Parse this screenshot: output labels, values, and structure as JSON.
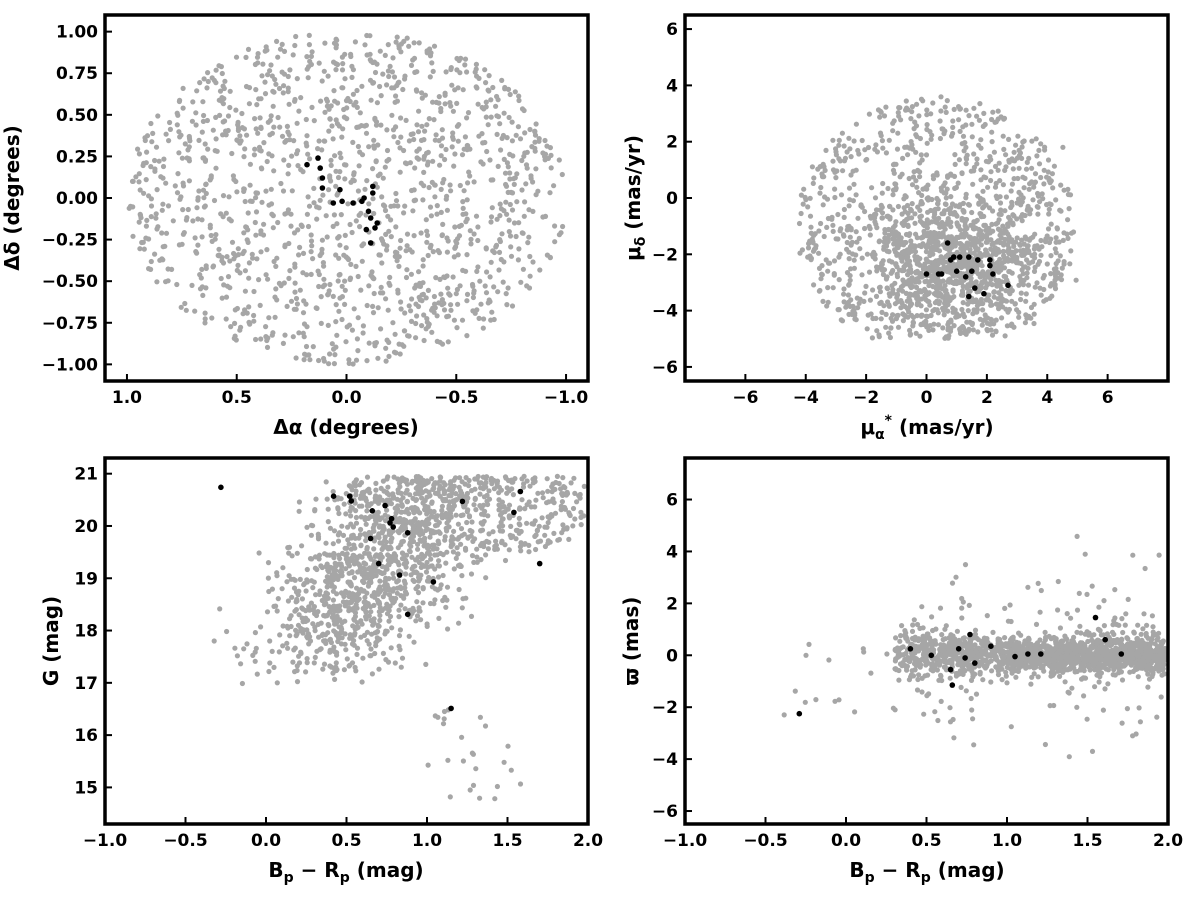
{
  "colors": {
    "field_stars": "#a6a6a6",
    "members": "#000000"
  },
  "chart_data": [
    {
      "id": "positions",
      "type": "scatter",
      "xlabel": "Δα (degrees)",
      "ylabel": "Δδ (degrees)",
      "xlim": [
        1.1,
        -1.1
      ],
      "ylim": [
        -1.1,
        1.1
      ],
      "x_inverted": true,
      "xticks": [
        1.0,
        0.5,
        0.0,
        -0.5,
        -1.0
      ],
      "xtick_labels": [
        "1.0",
        "0.5",
        "0.0",
        "−0.5",
        "−1.0"
      ],
      "yticks": [
        1.0,
        0.75,
        0.5,
        0.25,
        0.0,
        -0.25,
        -0.5,
        -0.75,
        -1.0
      ],
      "ytick_labels": [
        "1.00",
        "0.75",
        "0.50",
        "0.25",
        "0.00",
        "−0.25",
        "−0.50",
        "−0.75",
        "−1.00"
      ],
      "series": [
        {
          "role": "field",
          "color": "#a6a6a6",
          "distribution": "uniform disk",
          "center": [
            0,
            0
          ],
          "radius": 1.0,
          "approx_points": 1400
        },
        {
          "role": "members",
          "color": "#000000",
          "x": [
            0.18,
            0.13,
            0.12,
            0.11,
            0.11,
            0.06,
            0.03,
            0.02,
            -0.03,
            -0.07,
            -0.08,
            -0.09,
            -0.1,
            -0.11,
            -0.11,
            -0.12,
            -0.12,
            -0.14,
            -0.13
          ],
          "y": [
            0.2,
            0.24,
            0.18,
            0.12,
            0.06,
            -0.03,
            0.05,
            -0.02,
            -0.03,
            -0.02,
            0.0,
            -0.19,
            -0.08,
            -0.12,
            -0.27,
            0.03,
            0.07,
            -0.15,
            -0.18
          ]
        }
      ]
    },
    {
      "id": "proper-motion",
      "type": "scatter",
      "xlabel": "μα* (mas/yr)",
      "ylabel": "μδ (mas/yr)",
      "xlim": [
        -8,
        8
      ],
      "ylim": [
        -6.5,
        6.5
      ],
      "xticks": [
        -6,
        -4,
        -2,
        0,
        2,
        4,
        6
      ],
      "xtick_labels": [
        "−6",
        "−4",
        "−2",
        "0",
        "2",
        "4",
        "6"
      ],
      "yticks": [
        6,
        4,
        2,
        0,
        -2,
        -4,
        -6
      ],
      "ytick_labels": [
        "6",
        "4",
        "2",
        "0",
        "−2",
        "−4",
        "−6"
      ],
      "series": [
        {
          "role": "field",
          "color": "#a6a6a6",
          "distribution": "clipped ellipse",
          "center": [
            0.3,
            -1.2
          ],
          "semi_axes": [
            4.6,
            4.8
          ],
          "clip_y": [
            -5.0,
            4.5
          ],
          "approx_points": 1800
        },
        {
          "role": "members",
          "color": "#000000",
          "x": [
            0.7,
            0.9,
            1.1,
            1.4,
            1.7,
            2.1,
            2.2,
            0.8,
            1.0,
            1.3,
            0.4,
            0.5,
            1.5,
            1.9,
            1.4,
            1.6,
            2.7,
            0.0,
            2.1
          ],
          "y": [
            -1.6,
            -2.1,
            -2.1,
            -2.1,
            -2.2,
            -2.4,
            -2.7,
            -2.2,
            -2.6,
            -2.8,
            -2.7,
            -2.7,
            -2.6,
            -3.4,
            -3.5,
            -3.2,
            -3.1,
            -2.7,
            -2.2
          ]
        }
      ]
    },
    {
      "id": "cmd",
      "type": "scatter",
      "xlabel": "Bp − Rp (mag)",
      "ylabel": "G (mag)",
      "xlim": [
        -1.0,
        2.0
      ],
      "ylim": [
        14.3,
        21.3
      ],
      "y_inverted": false,
      "xticks": [
        -1.0,
        -0.5,
        0.0,
        0.5,
        1.0,
        1.5,
        2.0
      ],
      "xtick_labels": [
        "−1.0",
        "−0.5",
        "0.0",
        "0.5",
        "1.0",
        "1.5",
        "2.0"
      ],
      "yticks": [
        21,
        20,
        19,
        18,
        17,
        16,
        15
      ],
      "ytick_labels": [
        "21",
        "20",
        "19",
        "18",
        "17",
        "16",
        "15"
      ],
      "series": [
        {
          "role": "field",
          "color": "#a6a6a6",
          "distribution": "main sequence cloud",
          "approx_points": 1500
        },
        {
          "role": "members",
          "color": "#000000",
          "x": [
            -0.28,
            0.42,
            0.52,
            0.53,
            0.66,
            0.74,
            0.77,
            0.78,
            0.79,
            0.65,
            0.88,
            0.7,
            0.83,
            0.88,
            1.04,
            1.22,
            1.54,
            1.58,
            1.7,
            1.15
          ],
          "y": [
            20.74,
            20.57,
            20.57,
            20.48,
            20.29,
            20.39,
            20.06,
            20.14,
            19.98,
            19.76,
            19.87,
            19.28,
            19.06,
            18.31,
            18.93,
            20.47,
            20.26,
            20.66,
            19.28,
            16.51
          ]
        }
      ]
    },
    {
      "id": "parallax",
      "type": "scatter",
      "xlabel": "Bp − Rp (mag)",
      "ylabel": "ϖ (mas)",
      "xlim": [
        -1.0,
        2.0
      ],
      "ylim": [
        -6.5,
        7.6
      ],
      "xticks": [
        -1.0,
        -0.5,
        0.0,
        0.5,
        1.0,
        1.5,
        2.0
      ],
      "xtick_labels": [
        "−1.0",
        "−0.5",
        "0.0",
        "0.5",
        "1.0",
        "1.5",
        "2.0"
      ],
      "yticks": [
        6,
        4,
        2,
        0,
        -2,
        -4,
        -6
      ],
      "ytick_labels": [
        "6",
        "4",
        "2",
        "0",
        "−2",
        "−4",
        "−6"
      ],
      "series": [
        {
          "role": "field",
          "color": "#a6a6a6",
          "distribution": "horizontal band near 0",
          "approx_points": 1700
        },
        {
          "role": "members",
          "color": "#000000",
          "x": [
            -0.29,
            0.4,
            0.53,
            0.65,
            0.66,
            0.7,
            0.74,
            0.77,
            0.8,
            0.9,
            1.05,
            1.13,
            1.21,
            1.55,
            1.61,
            1.71
          ],
          "y": [
            -2.25,
            0.25,
            0.0,
            -0.55,
            -1.15,
            0.25,
            -0.1,
            0.8,
            -0.3,
            0.35,
            -0.05,
            0.05,
            0.05,
            1.45,
            0.6,
            0.05
          ]
        }
      ]
    }
  ]
}
